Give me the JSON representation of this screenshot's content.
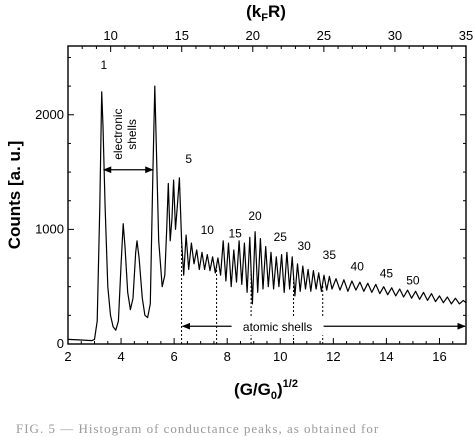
{
  "chart_data": {
    "type": "line",
    "xlabel": "(G/G₀)^{1/2}",
    "xlabel_main": "(G/G",
    "xlabel_sub": "0",
    "xlabel_close": ")",
    "xlabel_sup": "1/2",
    "x2label_main": "(k",
    "x2label_sub": "F",
    "x2label_close": "R)",
    "ylabel": "Counts  [a. u.]",
    "xlim": [
      2,
      17
    ],
    "ylim": [
      0,
      2600
    ],
    "x2lim": [
      7,
      35
    ],
    "x_ticks": [
      2,
      4,
      6,
      8,
      10,
      12,
      14,
      16
    ],
    "y_ticks": [
      0,
      1000,
      2000
    ],
    "x2_ticks": [
      10,
      15,
      20,
      25,
      30,
      35
    ],
    "grid": false,
    "series": [
      {
        "values": [
          [
            2.0,
            40
          ],
          [
            2.5,
            35
          ],
          [
            2.9,
            30
          ],
          [
            3.0,
            40
          ],
          [
            3.1,
            200
          ],
          [
            3.2,
            1200
          ],
          [
            3.27,
            2200
          ],
          [
            3.32,
            1900
          ],
          [
            3.4,
            1200
          ],
          [
            3.5,
            500
          ],
          [
            3.6,
            250
          ],
          [
            3.7,
            150
          ],
          [
            3.8,
            120
          ],
          [
            3.9,
            200
          ],
          [
            4.0,
            700
          ],
          [
            4.08,
            1050
          ],
          [
            4.15,
            850
          ],
          [
            4.25,
            450
          ],
          [
            4.35,
            300
          ],
          [
            4.45,
            400
          ],
          [
            4.55,
            800
          ],
          [
            4.6,
            900
          ],
          [
            4.68,
            750
          ],
          [
            4.8,
            400
          ],
          [
            4.9,
            250
          ],
          [
            5.0,
            230
          ],
          [
            5.1,
            350
          ],
          [
            5.2,
            1500
          ],
          [
            5.27,
            2250
          ],
          [
            5.33,
            1700
          ],
          [
            5.42,
            900
          ],
          [
            5.55,
            500
          ],
          [
            5.65,
            600
          ],
          [
            5.72,
            1000
          ],
          [
            5.78,
            1400
          ],
          [
            5.85,
            900
          ],
          [
            5.92,
            1100
          ],
          [
            5.98,
            1430
          ],
          [
            6.05,
            1000
          ],
          [
            6.12,
            1200
          ],
          [
            6.2,
            1450
          ],
          [
            6.28,
            900
          ],
          [
            6.36,
            600
          ],
          [
            6.45,
            950
          ],
          [
            6.55,
            650
          ],
          [
            6.65,
            880
          ],
          [
            6.75,
            700
          ],
          [
            6.85,
            820
          ],
          [
            6.95,
            650
          ],
          [
            7.05,
            800
          ],
          [
            7.15,
            650
          ],
          [
            7.25,
            780
          ],
          [
            7.35,
            640
          ],
          [
            7.45,
            760
          ],
          [
            7.55,
            620
          ],
          [
            7.65,
            750
          ],
          [
            7.75,
            600
          ],
          [
            7.85,
            900
          ],
          [
            7.95,
            550
          ],
          [
            8.05,
            880
          ],
          [
            8.15,
            500
          ],
          [
            8.25,
            820
          ],
          [
            8.35,
            540
          ],
          [
            8.45,
            900
          ],
          [
            8.55,
            520
          ],
          [
            8.65,
            880
          ],
          [
            8.75,
            450
          ],
          [
            8.85,
            930
          ],
          [
            8.95,
            350
          ],
          [
            9.05,
            980
          ],
          [
            9.15,
            450
          ],
          [
            9.25,
            920
          ],
          [
            9.35,
            480
          ],
          [
            9.45,
            850
          ],
          [
            9.55,
            500
          ],
          [
            9.65,
            800
          ],
          [
            9.75,
            480
          ],
          [
            9.85,
            760
          ],
          [
            9.95,
            500
          ],
          [
            10.05,
            780
          ],
          [
            10.15,
            450
          ],
          [
            10.25,
            800
          ],
          [
            10.35,
            480
          ],
          [
            10.45,
            760
          ],
          [
            10.55,
            420
          ],
          [
            10.65,
            700
          ],
          [
            10.75,
            460
          ],
          [
            10.85,
            680
          ],
          [
            10.95,
            480
          ],
          [
            11.05,
            650
          ],
          [
            11.15,
            460
          ],
          [
            11.25,
            640
          ],
          [
            11.35,
            480
          ],
          [
            11.45,
            620
          ],
          [
            11.55,
            460
          ],
          [
            11.65,
            600
          ],
          [
            11.75,
            470
          ],
          [
            11.85,
            590
          ],
          [
            11.95,
            480
          ],
          [
            12.1,
            570
          ],
          [
            12.25,
            470
          ],
          [
            12.4,
            560
          ],
          [
            12.55,
            460
          ],
          [
            12.7,
            550
          ],
          [
            12.85,
            470
          ],
          [
            13.0,
            540
          ],
          [
            13.15,
            460
          ],
          [
            13.3,
            530
          ],
          [
            13.45,
            450
          ],
          [
            13.6,
            520
          ],
          [
            13.75,
            440
          ],
          [
            13.9,
            500
          ],
          [
            14.05,
            430
          ],
          [
            14.2,
            490
          ],
          [
            14.35,
            420
          ],
          [
            14.5,
            480
          ],
          [
            14.65,
            410
          ],
          [
            14.8,
            470
          ],
          [
            14.95,
            400
          ],
          [
            15.1,
            460
          ],
          [
            15.25,
            390
          ],
          [
            15.4,
            450
          ],
          [
            15.55,
            380
          ],
          [
            15.7,
            440
          ],
          [
            15.85,
            370
          ],
          [
            16.0,
            420
          ],
          [
            16.15,
            360
          ],
          [
            16.3,
            410
          ],
          [
            16.45,
            350
          ],
          [
            16.6,
            400
          ],
          [
            16.75,
            350
          ],
          [
            16.9,
            380
          ],
          [
            17.0,
            360
          ]
        ]
      }
    ],
    "peak_labels": [
      {
        "text": "1",
        "x": 3.35,
        "y": 2400
      },
      {
        "text": "5",
        "x": 6.55,
        "y": 1580
      },
      {
        "text": "10",
        "x": 7.25,
        "y": 960
      },
      {
        "text": "15",
        "x": 8.3,
        "y": 930
      },
      {
        "text": "20",
        "x": 9.05,
        "y": 1080
      },
      {
        "text": "25",
        "x": 10.0,
        "y": 900
      },
      {
        "text": "30",
        "x": 10.9,
        "y": 820
      },
      {
        "text": "35",
        "x": 11.85,
        "y": 740
      },
      {
        "text": "40",
        "x": 12.9,
        "y": 640
      },
      {
        "text": "45",
        "x": 14.0,
        "y": 580
      },
      {
        "text": "50",
        "x": 15.0,
        "y": 520
      }
    ],
    "annotations": {
      "electronic_line1": "electronic",
      "electronic_line2": "shells",
      "electronic_range": [
        3.27,
        5.27
      ],
      "electronic_arrow_y": 1520,
      "atomic_label": "atomic shells",
      "atomic_range": [
        6.28,
        17.0
      ],
      "atomic_arrow_y": 155,
      "atomic_markers": [
        6.28,
        7.6,
        8.9,
        10.5,
        11.6
      ]
    }
  },
  "caption": {
    "text": "FIG. 5 — Histogram of conductance peaks, as obtained for"
  }
}
